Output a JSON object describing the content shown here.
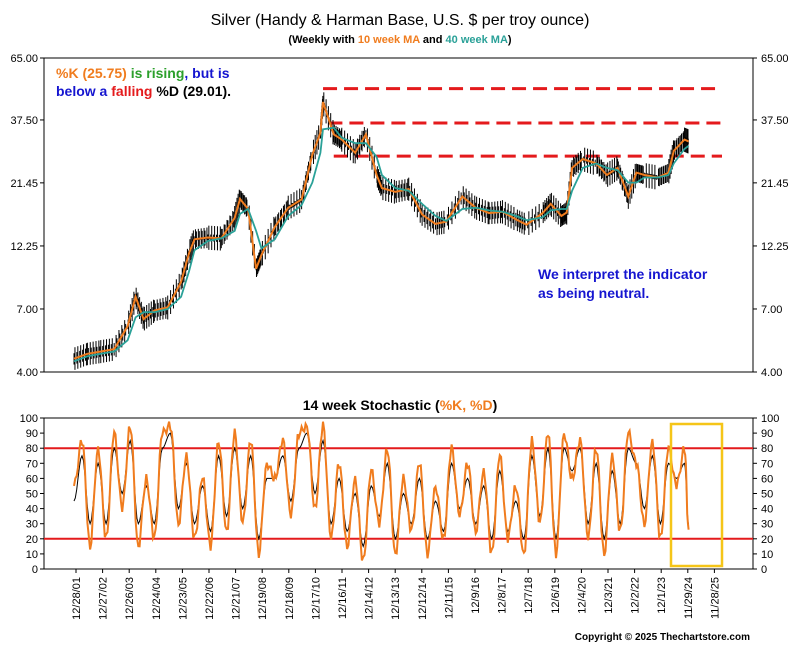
{
  "chart_data": [
    {
      "type": "line",
      "title": "Silver (Handy & Harman Base, U.S. $ per troy ounce)",
      "subtitle": {
        "prefix": "(Weekly with ",
        "ma10": "10 week MA",
        "mid": " and ",
        "ma40": "40 week MA",
        "suffix": ")"
      },
      "scale": "log",
      "y_ticks": [
        "65.00",
        "37.50",
        "21.45",
        "12.25",
        "7.00",
        "4.00"
      ],
      "ylim": [
        4.0,
        65.0
      ],
      "x_ticks": [
        "12/28/01",
        "12/27/02",
        "12/26/03",
        "12/24/04",
        "12/23/05",
        "12/22/06",
        "12/21/07",
        "12/19/08",
        "12/18/09",
        "12/17/10",
        "12/16/11",
        "12/14/12",
        "12/13/13",
        "12/12/14",
        "12/11/15",
        "12/9/16",
        "12/8/17",
        "12/7/18",
        "12/6/19",
        "12/4/20",
        "12/3/21",
        "12/2/22",
        "12/1/23",
        "11/29/24",
        "11/28/25"
      ],
      "x": [
        2002.0,
        2002.5,
        2003.0,
        2003.5,
        2004.0,
        2004.3,
        2004.6,
        2005.0,
        2005.5,
        2006.0,
        2006.3,
        2006.5,
        2007.0,
        2007.5,
        2008.0,
        2008.2,
        2008.5,
        2008.8,
        2009.0,
        2009.5,
        2010.0,
        2010.5,
        2010.9,
        2011.2,
        2011.3,
        2011.7,
        2012.0,
        2012.5,
        2012.9,
        2013.3,
        2013.5,
        2014.0,
        2014.5,
        2015.0,
        2015.5,
        2015.9,
        2016.5,
        2017.0,
        2017.5,
        2018.0,
        2018.5,
        2018.9,
        2019.5,
        2019.8,
        2020.2,
        2020.4,
        2020.6,
        2021.0,
        2021.5,
        2021.9,
        2022.3,
        2022.7,
        2023.0,
        2023.3,
        2023.8,
        2024.2,
        2024.4,
        2024.8,
        2024.95
      ],
      "series": [
        {
          "name": "10 week MA",
          "color": "#f07c1e",
          "values": [
            4.5,
            4.7,
            4.8,
            4.9,
            6.0,
            7.8,
            6.4,
            6.9,
            7.1,
            8.9,
            11.5,
            13.0,
            13.2,
            13.1,
            15.7,
            18.6,
            17.0,
            10.0,
            11.3,
            14.5,
            17.2,
            18.5,
            27.5,
            33.5,
            44.0,
            33.0,
            31.5,
            28.0,
            33.0,
            23.0,
            20.5,
            19.8,
            20.3,
            16.2,
            14.9,
            15.2,
            19.0,
            17.2,
            16.4,
            16.6,
            15.5,
            14.8,
            16.4,
            17.8,
            16.0,
            16.5,
            24.5,
            26.5,
            25.5,
            23.0,
            24.5,
            19.0,
            23.5,
            23.0,
            22.5,
            23.5,
            28.5,
            31.5,
            31.0
          ]
        },
        {
          "name": "40 week MA",
          "color": "#2aa198",
          "values": [
            4.4,
            4.6,
            4.7,
            4.8,
            5.3,
            6.5,
            6.8,
            6.8,
            7.0,
            7.8,
            9.8,
            11.8,
            12.8,
            13.1,
            14.0,
            16.3,
            17.0,
            14.0,
            12.0,
            13.0,
            16.0,
            17.6,
            21.5,
            28.0,
            34.5,
            35.0,
            32.0,
            30.5,
            30.5,
            27.0,
            23.0,
            20.5,
            20.0,
            17.8,
            16.0,
            15.3,
            17.0,
            17.2,
            16.8,
            16.6,
            16.0,
            15.4,
            15.8,
            16.8,
            17.0,
            17.0,
            20.0,
            24.5,
            25.5,
            24.5,
            24.0,
            21.5,
            21.5,
            22.5,
            22.5,
            23.0,
            25.5,
            29.0,
            29.8
          ]
        }
      ],
      "resistance_levels": [
        49.5,
        36.5,
        27.2
      ],
      "annotations": {
        "k_label": "%K (25.75)",
        "is_rising": "is rising",
        "but_is": ", but is",
        "below_a": "below a",
        "falling": "falling",
        "d_label": "%D (29.01).",
        "interpret_line1": "We interpret the indicator",
        "interpret_line2": "as being neutral."
      },
      "colors": {
        "orange": "#f07c1e",
        "green": "#2ca02c",
        "blue": "#1515d0",
        "red": "#e41a1c",
        "teal": "#2aa198",
        "dashed": "#e41a1c"
      }
    },
    {
      "type": "line",
      "title_prefix": "14 week Stochastic (",
      "title_series": "%K, %D",
      "title_suffix": ")",
      "ylim": [
        0,
        100
      ],
      "y_ticks": [
        "100",
        "90",
        "80",
        "70",
        "60",
        "50",
        "40",
        "30",
        "20",
        "10",
        "0"
      ],
      "overbought": 80,
      "oversold": 20,
      "x": [
        2002.0,
        2002.3,
        2002.6,
        2002.9,
        2003.2,
        2003.5,
        2003.8,
        2004.1,
        2004.4,
        2004.7,
        2005.0,
        2005.3,
        2005.6,
        2005.9,
        2006.2,
        2006.5,
        2006.8,
        2007.1,
        2007.4,
        2007.7,
        2008.0,
        2008.3,
        2008.6,
        2008.9,
        2009.2,
        2009.5,
        2009.8,
        2010.1,
        2010.4,
        2010.7,
        2011.0,
        2011.3,
        2011.6,
        2011.9,
        2012.2,
        2012.5,
        2012.8,
        2013.1,
        2013.4,
        2013.7,
        2014.0,
        2014.3,
        2014.6,
        2014.9,
        2015.2,
        2015.5,
        2015.8,
        2016.1,
        2016.4,
        2016.7,
        2017.0,
        2017.3,
        2017.6,
        2017.9,
        2018.2,
        2018.5,
        2018.8,
        2019.1,
        2019.4,
        2019.7,
        2020.0,
        2020.3,
        2020.6,
        2020.9,
        2021.2,
        2021.5,
        2021.8,
        2022.1,
        2022.4,
        2022.7,
        2023.0,
        2023.3,
        2023.6,
        2023.9,
        2024.2,
        2024.5,
        2024.8,
        2024.95
      ],
      "series": [
        {
          "name": "%K",
          "color": "#f07c1e",
          "values": [
            55,
            85,
            15,
            80,
            20,
            90,
            40,
            95,
            15,
            60,
            20,
            90,
            95,
            30,
            75,
            20,
            60,
            15,
            85,
            25,
            90,
            30,
            85,
            10,
            70,
            60,
            85,
            35,
            90,
            95,
            40,
            95,
            20,
            70,
            15,
            60,
            5,
            65,
            30,
            80,
            10,
            60,
            25,
            70,
            10,
            55,
            20,
            80,
            35,
            70,
            25,
            65,
            10,
            75,
            20,
            55,
            10,
            85,
            30,
            90,
            10,
            90,
            60,
            85,
            20,
            80,
            10,
            75,
            25,
            90,
            70,
            30,
            85,
            20,
            80,
            55,
            80,
            26
          ]
        },
        {
          "name": "%D",
          "color": "#000000",
          "values": [
            45,
            75,
            30,
            70,
            30,
            80,
            50,
            85,
            30,
            55,
            30,
            80,
            90,
            40,
            70,
            30,
            55,
            25,
            75,
            35,
            80,
            40,
            75,
            20,
            60,
            60,
            75,
            45,
            80,
            90,
            50,
            85,
            30,
            60,
            25,
            50,
            15,
            55,
            35,
            70,
            20,
            50,
            30,
            60,
            20,
            45,
            25,
            70,
            40,
            60,
            30,
            55,
            20,
            65,
            25,
            45,
            20,
            75,
            35,
            80,
            20,
            80,
            65,
            80,
            30,
            70,
            20,
            65,
            30,
            80,
            70,
            40,
            75,
            30,
            70,
            60,
            70,
            29
          ]
        }
      ]
    }
  ],
  "copyright": "Copyright © 2025 Thechartstore.com"
}
